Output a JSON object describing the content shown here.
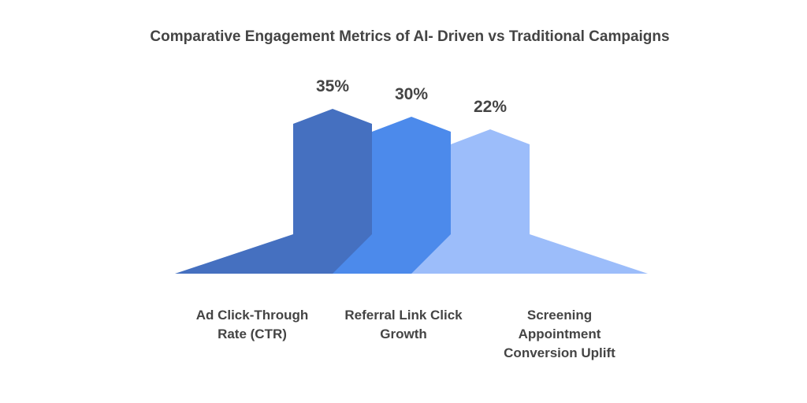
{
  "chart_data": {
    "type": "peak",
    "title": "Comparative Engagement Metrics of AI- Driven vs Traditional Campaigns",
    "series": [
      {
        "name": null,
        "values": [
          35,
          30,
          22
        ],
        "value_labels": [
          "35%",
          "30%",
          "22%"
        ]
      }
    ],
    "categories": [
      "Ad Click-Through Rate (CTR)",
      "Referral Link Click Growth",
      "Screening Appointment Conversion Uplift"
    ],
    "colors": [
      "#4570c0",
      "#4c8aeb",
      "#9cbdfa"
    ]
  }
}
